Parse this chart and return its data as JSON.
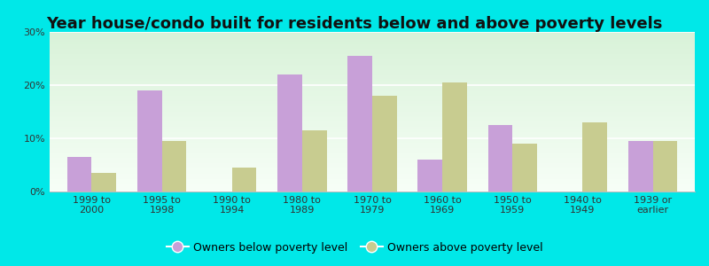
{
  "title": "Year house/condo built for residents below and above poverty levels",
  "categories": [
    "1999 to\n2000",
    "1995 to\n1998",
    "1990 to\n1994",
    "1980 to\n1989",
    "1970 to\n1979",
    "1960 to\n1969",
    "1950 to\n1959",
    "1940 to\n1949",
    "1939 or\nearlier"
  ],
  "below_poverty": [
    6.5,
    19.0,
    0.0,
    22.0,
    25.5,
    6.0,
    12.5,
    0.0,
    9.5
  ],
  "above_poverty": [
    3.5,
    9.5,
    4.5,
    11.5,
    18.0,
    20.5,
    9.0,
    13.0,
    9.5
  ],
  "below_color": "#c8a0d8",
  "above_color": "#c8cc90",
  "ylim": [
    0,
    30
  ],
  "yticks": [
    0,
    10,
    20,
    30
  ],
  "ytick_labels": [
    "0%",
    "10%",
    "20%",
    "30%"
  ],
  "legend_below": "Owners below poverty level",
  "legend_above": "Owners above poverty level",
  "outer_bg": "#00e8e8",
  "title_fontsize": 13,
  "tick_fontsize": 8,
  "legend_fontsize": 9,
  "bar_width": 0.35
}
